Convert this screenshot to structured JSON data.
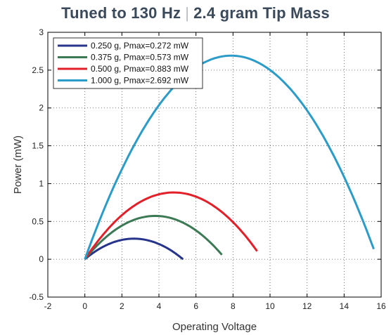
{
  "header": {
    "title_left": "Tuned to 130 Hz",
    "separator": "|",
    "title_right": "2.4 gram Tip Mass"
  },
  "chart_data": {
    "type": "line",
    "title": "Tuned to 130 Hz | 2.4 gram Tip Mass",
    "xlabel": "Operating Voltage",
    "ylabel": "Power (mW)",
    "xlim": [
      -2,
      16
    ],
    "ylim": [
      -0.5,
      3
    ],
    "xticks": [
      -2,
      0,
      2,
      4,
      6,
      8,
      10,
      12,
      14,
      16
    ],
    "yticks": [
      -0.5,
      0,
      0.5,
      1,
      1.5,
      2,
      2.5,
      3
    ],
    "xtick_labels": [
      "-2",
      "0",
      "2",
      "4",
      "6",
      "8",
      "10",
      "12",
      "14",
      "16"
    ],
    "ytick_labels": [
      "-0.5",
      "0",
      "0.5",
      "1",
      "1.5",
      "2",
      "2.5",
      "3"
    ],
    "grid": true,
    "legend_position": "top-left",
    "series": [
      {
        "name": "0.250 g, Pmax=0.272 mW",
        "color": "#27348b",
        "pmax": 0.272,
        "v_at_max": 2.65,
        "v_end": 5.3
      },
      {
        "name": "0.375 g, Pmax=0.573 mW",
        "color": "#3c7a55",
        "pmax": 0.573,
        "v_at_max": 3.8,
        "v_end": 7.4
      },
      {
        "name": "0.500 g, Pmax=0.883 mW",
        "color": "#e3202a",
        "pmax": 0.883,
        "v_at_max": 4.8,
        "v_end": 9.3
      },
      {
        "name": "1.000 g, Pmax=2.692 mW",
        "color": "#2b9bc8",
        "pmax": 2.692,
        "v_at_max": 7.9,
        "v_end": 15.6
      }
    ]
  }
}
